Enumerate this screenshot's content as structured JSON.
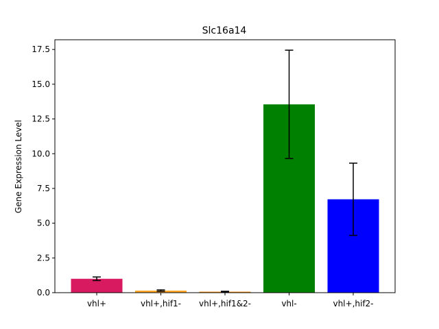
{
  "chart_data": {
    "type": "bar",
    "title": "Slc16a14",
    "xlabel": "",
    "ylabel": "Gene Expression Level",
    "categories": [
      "vhl+",
      "vhl+,hif1-",
      "vhl+,hif1&2-",
      "vhl-",
      "vhl+,hif2-"
    ],
    "values": [
      1.0,
      0.15,
      0.07,
      13.55,
      6.72
    ],
    "errors": [
      0.13,
      0.05,
      0.03,
      3.9,
      2.6
    ],
    "colors": [
      "#d81b60",
      "#ffa726",
      "#ff8f00",
      "#008000",
      "#0000ff"
    ],
    "ylim": [
      0,
      18.2
    ],
    "yticks": [
      0.0,
      2.5,
      5.0,
      7.5,
      10.0,
      12.5,
      15.0,
      17.5
    ],
    "ytick_labels": [
      "0.0",
      "2.5",
      "5.0",
      "7.5",
      "10.0",
      "12.5",
      "15.0",
      "17.5"
    ],
    "grid": false,
    "legend": "none"
  }
}
